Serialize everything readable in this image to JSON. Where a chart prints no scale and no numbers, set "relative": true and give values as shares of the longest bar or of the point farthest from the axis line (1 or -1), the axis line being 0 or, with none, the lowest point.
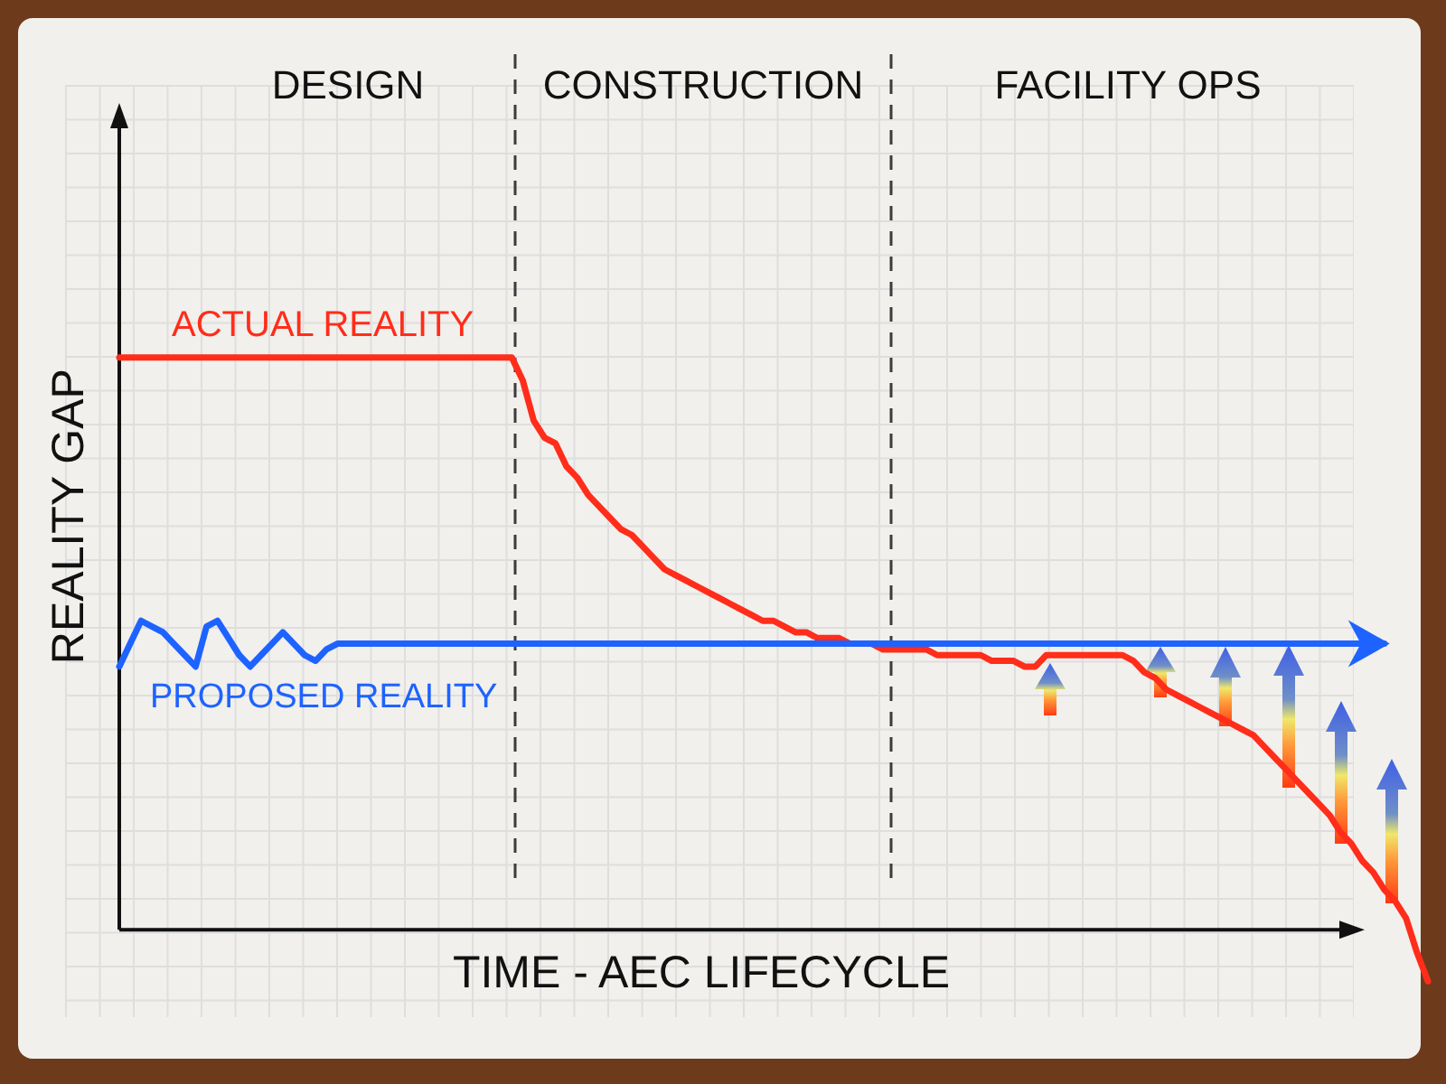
{
  "chart_data": {
    "type": "line",
    "relative": true,
    "xlabel": "TIME - AEC LIFECYCLE",
    "ylabel": "REALITY GAP",
    "annotations": [
      "DESIGN",
      "CONSTRUCTION",
      "FACILITY OPS"
    ],
    "categories": [
      null,
      null,
      null,
      null,
      null,
      null,
      null,
      null,
      null,
      null,
      null,
      null,
      null,
      null,
      null,
      null,
      null,
      null,
      null,
      null,
      null,
      null,
      null,
      null,
      null,
      null,
      null,
      null,
      null,
      null,
      null,
      null,
      null,
      null,
      null,
      null,
      null,
      null,
      null,
      null,
      null,
      null,
      null,
      null,
      null,
      null,
      null,
      null,
      null,
      null,
      null,
      null,
      null,
      null,
      null,
      null,
      null,
      null,
      null,
      null,
      null,
      null,
      null,
      null,
      null,
      null,
      null,
      null,
      null,
      null,
      null,
      null,
      null,
      null,
      null,
      null,
      null,
      null,
      null,
      null,
      null,
      null,
      null,
      null,
      null,
      null,
      null,
      null,
      null,
      null,
      null,
      null,
      null,
      null,
      null,
      null,
      null,
      null,
      null,
      null,
      null,
      null,
      null,
      null,
      null,
      null,
      null,
      null,
      null,
      null,
      null,
      null,
      null,
      null,
      null,
      null,
      null,
      null,
      null,
      null,
      null
    ],
    "series": [
      {
        "name": "ACTUAL REALITY",
        "color": "#ff2d1a",
        "values": [
          1.0,
          1.0,
          1.0,
          1.0,
          1.0,
          1.0,
          1.0,
          1.0,
          1.0,
          1.0,
          1.0,
          1.0,
          1.0,
          1.0,
          1.0,
          1.0,
          1.0,
          1.0,
          1.0,
          1.0,
          1.0,
          1.0,
          1.0,
          1.0,
          1.0,
          1.0,
          1.0,
          1.0,
          1.0,
          1.0,
          1.0,
          1.0,
          1.0,
          1.0,
          1.0,
          1.0,
          1.0,
          0.96,
          0.89,
          0.86,
          0.85,
          0.81,
          0.79,
          0.76,
          0.74,
          0.72,
          0.7,
          0.69,
          0.67,
          0.65,
          0.63,
          0.62,
          0.61,
          0.6,
          0.59,
          0.58,
          0.57,
          0.56,
          0.55,
          0.54,
          0.54,
          0.53,
          0.52,
          0.52,
          0.51,
          0.51,
          0.51,
          0.5,
          0.5,
          0.5,
          0.49,
          0.49,
          0.49,
          0.49,
          0.49,
          0.48,
          0.48,
          0.48,
          0.48,
          0.48,
          0.47,
          0.47,
          0.47,
          0.46,
          0.46,
          0.48,
          0.48,
          0.48,
          0.48,
          0.48,
          0.48,
          0.48,
          0.48,
          0.47,
          0.45,
          0.44,
          0.42,
          0.41,
          0.4,
          0.39,
          0.38,
          0.37,
          0.36,
          0.35,
          0.34,
          0.32,
          0.3,
          0.28,
          0.26,
          0.24,
          0.22,
          0.2,
          0.17,
          0.15,
          0.12,
          0.1,
          0.07,
          0.05,
          0.02,
          -0.04,
          -0.09
        ]
      },
      {
        "name": "PROPOSED REALITY",
        "color": "#1e63ff",
        "values": [
          0.46,
          0.5,
          0.54,
          0.53,
          0.52,
          0.5,
          0.48,
          0.46,
          0.53,
          0.54,
          0.51,
          0.48,
          0.46,
          0.48,
          0.5,
          0.52,
          0.5,
          0.48,
          0.47,
          0.49,
          0.5,
          0.5,
          0.5,
          0.5,
          0.5,
          0.5,
          0.5,
          0.5,
          0.5,
          0.5,
          0.5,
          0.5,
          0.5,
          0.5,
          0.5,
          0.5,
          0.5,
          0.5,
          0.5,
          0.5,
          0.5,
          0.5,
          0.5,
          0.5,
          0.5,
          0.5,
          0.5,
          0.5,
          0.5,
          0.5,
          0.5,
          0.5,
          0.5,
          0.5,
          0.5,
          0.5,
          0.5,
          0.5,
          0.5,
          0.5,
          0.5,
          0.5,
          0.5,
          0.5,
          0.5,
          0.5,
          0.5,
          0.5,
          0.5,
          0.5,
          0.5,
          0.5,
          0.5,
          0.5,
          0.5,
          0.5,
          0.5,
          0.5,
          0.5,
          0.5,
          0.5,
          0.5,
          0.5,
          0.5,
          0.5,
          0.5,
          0.5,
          0.5,
          0.5,
          0.5,
          0.5,
          0.5,
          0.5,
          0.5,
          0.5,
          0.5,
          0.5,
          0.5,
          0.5,
          0.5,
          0.5,
          0.5,
          0.5,
          0.5,
          0.5,
          0.5,
          0.5,
          0.5,
          0.5,
          0.5,
          0.5,
          0.5,
          0.5,
          0.5,
          0.5,
          0.5,
          0.5,
          null,
          null,
          null,
          null
        ]
      }
    ],
    "line_style": "solid"
  }
}
